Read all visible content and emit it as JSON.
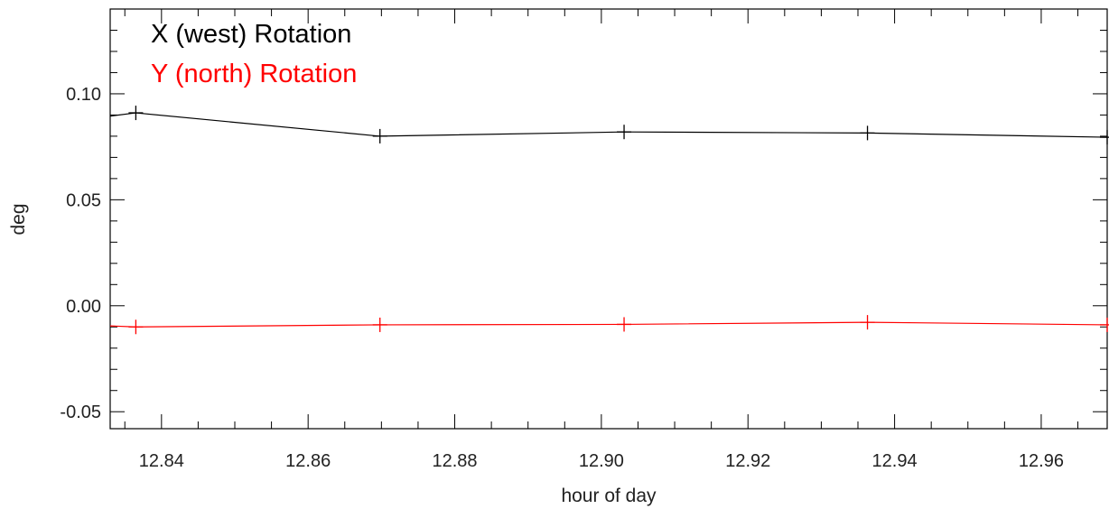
{
  "chart_data": {
    "type": "line",
    "title": "",
    "xlabel": "hour of day",
    "ylabel": "deg",
    "xlim": [
      12.833,
      12.969
    ],
    "ylim": [
      -0.058,
      0.14
    ],
    "x_ticks": [
      {
        "value": 12.84,
        "label": "12.84"
      },
      {
        "value": 12.86,
        "label": "12.86"
      },
      {
        "value": 12.88,
        "label": "12.88"
      },
      {
        "value": 12.9,
        "label": "12.90"
      },
      {
        "value": 12.92,
        "label": "12.92"
      },
      {
        "value": 12.94,
        "label": "12.94"
      },
      {
        "value": 12.96,
        "label": "12.96"
      }
    ],
    "x_minor_step": 0.005,
    "y_ticks": [
      {
        "value": 0.1,
        "label": "0.10"
      },
      {
        "value": 0.05,
        "label": "0.05"
      },
      {
        "value": 0.0,
        "label": "0.00"
      },
      {
        "value": -0.05,
        "label": "-0.05"
      }
    ],
    "y_minor_step": 0.01,
    "grid": false,
    "legend_position": "top-left",
    "series": [
      {
        "name": "X (west) Rotation",
        "color": "#000000",
        "marker": "plus",
        "x": [
          12.833,
          12.8365,
          12.8698,
          12.9031,
          12.9363,
          12.969
        ],
        "y": [
          0.0895,
          0.091,
          0.08,
          0.082,
          0.0815,
          0.0795
        ]
      },
      {
        "name": "Y (north) Rotation",
        "color": "#ff0000",
        "marker": "plus",
        "x": [
          12.833,
          12.8365,
          12.8698,
          12.9031,
          12.9363,
          12.969
        ],
        "y": [
          -0.0095,
          -0.01,
          -0.009,
          -0.0088,
          -0.0078,
          -0.009
        ]
      }
    ]
  }
}
